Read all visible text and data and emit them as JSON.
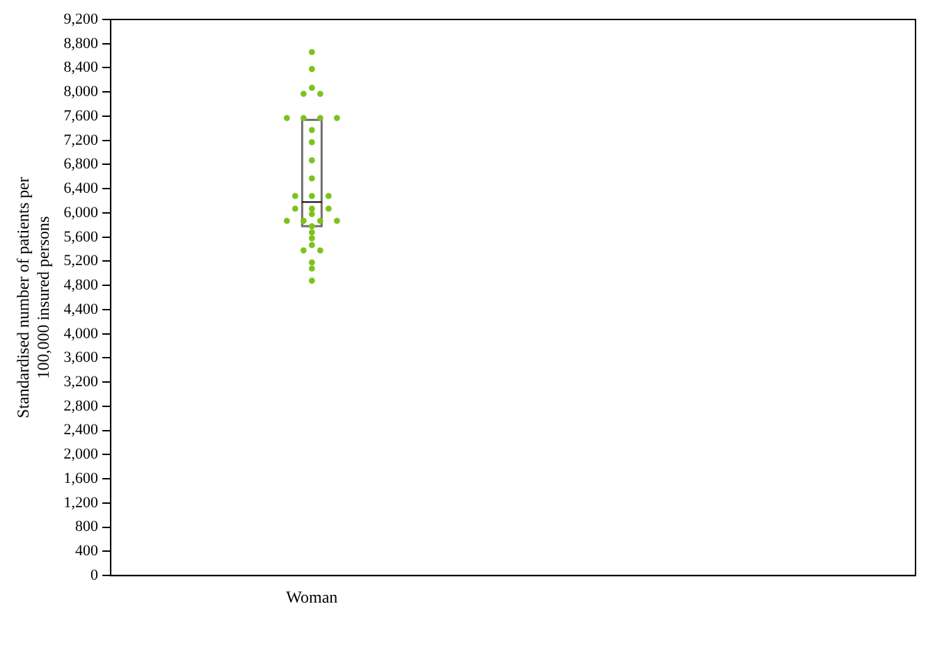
{
  "chart_data": {
    "type": "box",
    "ylabel": "Standardised number of patients per 100,000 insured persons",
    "categories": [
      "Woman",
      null
    ],
    "boxes": [
      {
        "low": 5780,
        "q1": 5780,
        "median": 6180,
        "q3": 7540,
        "high": 7540
      },
      null
    ],
    "series": [
      {
        "type": "scatter",
        "color": "#7dc31e",
        "x": [
          "Woman",
          "Woman",
          "Woman",
          "Woman",
          "Woman",
          "Woman",
          "Woman",
          "Woman",
          "Woman",
          "Woman",
          "Woman",
          "Woman",
          "Woman",
          "Woman",
          "Woman",
          "Woman",
          "Woman",
          "Woman",
          "Woman",
          "Woman",
          "Woman",
          "Woman",
          "Woman",
          "Woman",
          "Woman",
          "Woman",
          "Woman",
          "Woman",
          "Woman",
          "Woman",
          "Woman",
          "Woman",
          "Woman"
        ],
        "values": [
          8660,
          8380,
          8070,
          7970,
          7970,
          7570,
          7570,
          7570,
          7570,
          7370,
          7170,
          6870,
          6570,
          6280,
          6280,
          6280,
          6070,
          6070,
          6070,
          5980,
          5870,
          5870,
          5870,
          5870,
          5780,
          5680,
          5580,
          5470,
          5380,
          5380,
          5180,
          5080,
          4880
        ]
      }
    ],
    "ylim": [
      0,
      9200
    ],
    "yticks": [
      0,
      400,
      800,
      {
        "value": 1200,
        "label": "1,200"
      },
      {
        "value": 1600,
        "label": "1,600"
      },
      {
        "value": 2000,
        "label": "2,000"
      },
      {
        "value": 2400,
        "label": "2,400"
      },
      {
        "value": 2800,
        "label": "2,800"
      },
      {
        "value": 3200,
        "label": "3,200"
      },
      {
        "value": 3600,
        "label": "3,600"
      },
      {
        "value": 4000,
        "label": "4,000"
      },
      {
        "value": 4400,
        "label": "4,400"
      },
      {
        "value": 4800,
        "label": "4,800"
      },
      {
        "value": 5200,
        "label": "5,200"
      },
      {
        "value": 5600,
        "label": "5,600"
      },
      {
        "value": 6000,
        "label": "6,000"
      },
      {
        "value": 6400,
        "label": "6,400"
      },
      {
        "value": 6800,
        "label": "6,800"
      },
      {
        "value": 7200,
        "label": "7,200"
      },
      {
        "value": 7600,
        "label": "7,600"
      },
      {
        "value": 8000,
        "label": "8,000"
      },
      {
        "value": 8400,
        "label": "8,400"
      },
      {
        "value": 8800,
        "label": "8,800"
      },
      {
        "value": 9200,
        "label": "9,200"
      }
    ],
    "grid": false,
    "legend": false,
    "marker": "circle"
  }
}
